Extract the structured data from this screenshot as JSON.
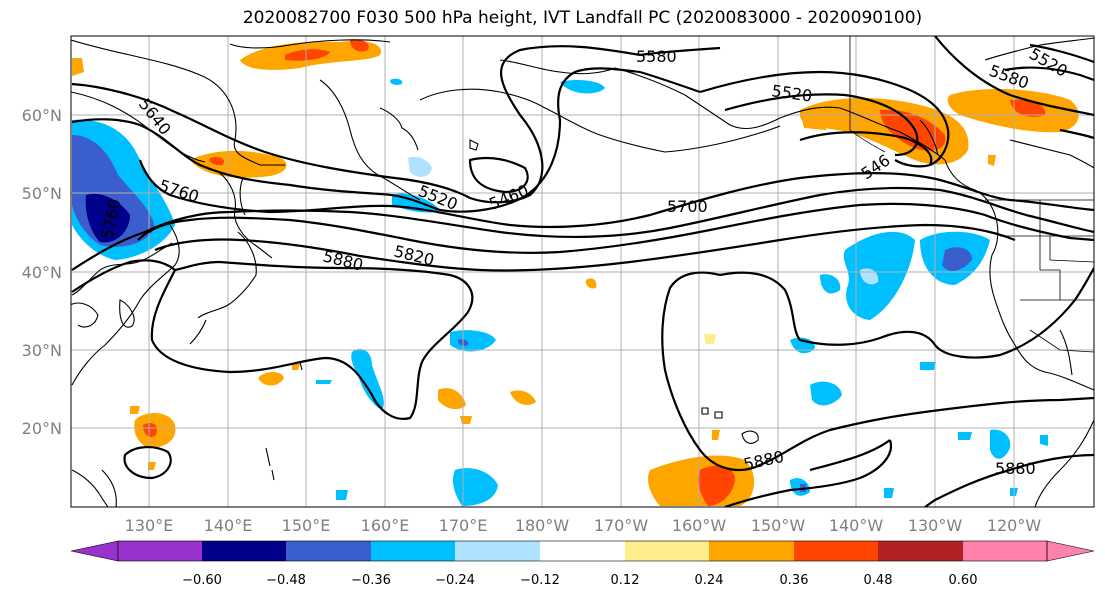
{
  "title": "2020082700 F030 500 hPa height, IVT Landfall PC (2020083000 - 2020090100)",
  "lat_labels": [
    "60°N",
    "50°N",
    "40°N",
    "30°N",
    "20°N"
  ],
  "lon_labels": [
    "130°E",
    "140°E",
    "150°E",
    "160°E",
    "170°E",
    "180°W",
    "170°W",
    "160°W",
    "150°W",
    "140°W",
    "130°W",
    "120°W"
  ],
  "contour_labels": [
    "5580",
    "5520",
    "5580",
    "5520",
    "5640",
    "5760",
    "5760",
    "5520",
    "5460",
    "5700",
    "5820",
    "5880",
    "546",
    "5880",
    "5880"
  ],
  "colorbar": {
    "ticks": [
      "−0.60",
      "−0.48",
      "−0.36",
      "−0.24",
      "−0.12",
      "0.12",
      "0.24",
      "0.36",
      "0.48",
      "0.60"
    ],
    "colors": [
      "#9932cc",
      "#00008b",
      "#3a5fcd",
      "#00bfff",
      "#b0e2ff",
      "#ffffff",
      "#ffec8b",
      "#ffa500",
      "#ff4500",
      "#b22222",
      "#ff82ab"
    ],
    "extend": "both"
  }
}
